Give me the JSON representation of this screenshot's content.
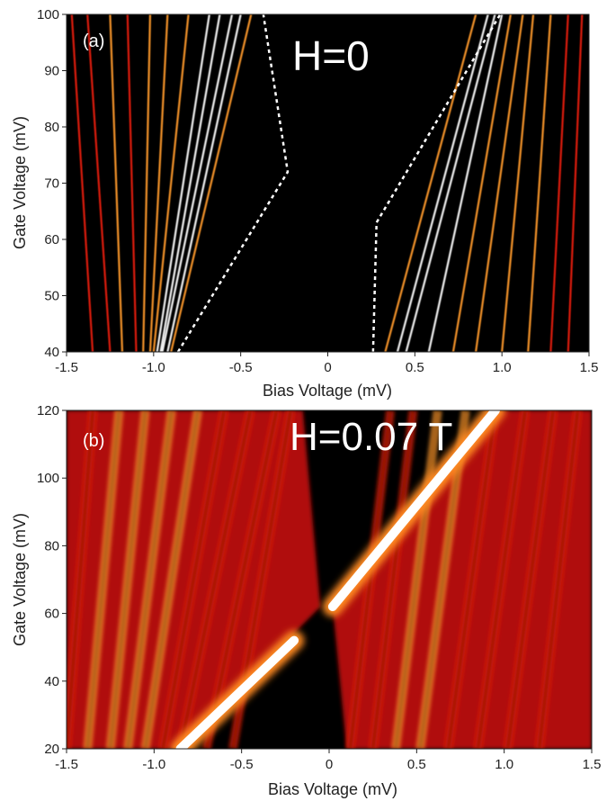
{
  "chart_data": [
    {
      "type": "heatmap",
      "panel_label": "(a)",
      "annotation": "H=0",
      "xlabel": "Bias Voltage (mV)",
      "ylabel": "Gate Voltage (mV)",
      "xlim": [
        -1.5,
        1.5
      ],
      "ylim": [
        40,
        100
      ],
      "xticks": [
        -1.5,
        -1.0,
        -0.5,
        0,
        0.5,
        1.0,
        1.5
      ],
      "xtick_labels": [
        "-1.5",
        "-1.0",
        "-0.5",
        "0",
        "0.5",
        "1.0",
        "1.5"
      ],
      "yticks": [
        40,
        50,
        60,
        70,
        80,
        90,
        100
      ],
      "ytick_labels": [
        "40",
        "50",
        "60",
        "70",
        "80",
        "90",
        "100"
      ],
      "colormap": [
        "#000000",
        "#7a0000",
        "#e8200c",
        "#ff9a2e",
        "#ffffff"
      ],
      "gap_boundary_left": [
        [
          -0.86,
          40
        ],
        [
          -0.23,
          72
        ],
        [
          -0.37,
          100
        ]
      ],
      "gap_boundary_right": [
        [
          0.26,
          40
        ],
        [
          0.28,
          63
        ],
        [
          0.99,
          100
        ]
      ],
      "boundary_color": "#ffffff",
      "stripes_left": [
        {
          "bias_at_top": -1.47,
          "bias_at_bottom": -1.35,
          "intensity": 0.55
        },
        {
          "bias_at_top": -1.38,
          "bias_at_bottom": -1.25,
          "intensity": 0.6
        },
        {
          "bias_at_top": -1.25,
          "bias_at_bottom": -1.18,
          "intensity": 0.65
        },
        {
          "bias_at_top": -1.15,
          "bias_at_bottom": -1.1,
          "intensity": 0.6
        },
        {
          "bias_at_top": -1.02,
          "bias_at_bottom": -1.06,
          "intensity": 0.7
        },
        {
          "bias_at_top": -0.92,
          "bias_at_bottom": -1.02,
          "intensity": 0.75
        },
        {
          "bias_at_top": -0.8,
          "bias_at_bottom": -1.0,
          "intensity": 0.85
        },
        {
          "bias_at_top": -0.68,
          "bias_at_bottom": -0.98,
          "intensity": 0.9
        },
        {
          "bias_at_top": -0.62,
          "bias_at_bottom": -0.96,
          "intensity": 1.0
        },
        {
          "bias_at_top": -0.55,
          "bias_at_bottom": -0.95,
          "intensity": 0.95
        },
        {
          "bias_at_top": -0.5,
          "bias_at_bottom": -0.92,
          "intensity": 0.9
        },
        {
          "bias_at_top": -0.44,
          "bias_at_bottom": -0.9,
          "intensity": 0.8
        }
      ],
      "stripes_right": [
        {
          "bias_at_top": 1.46,
          "bias_at_bottom": 1.38,
          "intensity": 0.55
        },
        {
          "bias_at_top": 1.38,
          "bias_at_bottom": 1.28,
          "intensity": 0.6
        },
        {
          "bias_at_top": 1.28,
          "bias_at_bottom": 1.15,
          "intensity": 0.65
        },
        {
          "bias_at_top": 1.18,
          "bias_at_bottom": 1.0,
          "intensity": 0.7
        },
        {
          "bias_at_top": 1.12,
          "bias_at_bottom": 0.85,
          "intensity": 0.8
        },
        {
          "bias_at_top": 1.05,
          "bias_at_bottom": 0.72,
          "intensity": 0.85
        },
        {
          "bias_at_top": 1.0,
          "bias_at_bottom": 0.58,
          "intensity": 0.9
        },
        {
          "bias_at_top": 0.96,
          "bias_at_bottom": 0.45,
          "intensity": 1.0
        },
        {
          "bias_at_top": 0.92,
          "bias_at_bottom": 0.4,
          "intensity": 0.9
        },
        {
          "bias_at_top": 0.85,
          "bias_at_bottom": 0.33,
          "intensity": 0.75
        }
      ]
    },
    {
      "type": "heatmap",
      "panel_label": "(b)",
      "annotation": "H=0.07 T",
      "xlabel": "Bias Voltage (mV)",
      "ylabel": "Gate Voltage (mV)",
      "xlim": [
        -1.5,
        1.5
      ],
      "ylim": [
        20,
        120
      ],
      "xticks": [
        -1.5,
        -1.0,
        -0.5,
        0,
        0.5,
        1.0,
        1.5
      ],
      "xtick_labels": [
        "-1.5",
        "-1.0",
        "-0.5",
        "0",
        "0.5",
        "1.0",
        "1.5"
      ],
      "yticks": [
        20,
        40,
        60,
        80,
        100,
        120
      ],
      "ytick_labels": [
        "20",
        "40",
        "60",
        "80",
        "100",
        "120"
      ],
      "colormap": [
        "#000000",
        "#7a0000",
        "#e8200c",
        "#ff9a2e",
        "#ffffff"
      ],
      "bright_line_left": [
        [
          -0.85,
          20
        ],
        [
          -0.2,
          52
        ]
      ],
      "bright_line_right": [
        [
          0.02,
          62
        ],
        [
          0.95,
          120
        ]
      ],
      "stripes_left": [
        {
          "bias_at_top": -1.35,
          "bias_at_bottom": -1.5,
          "intensity": 0.8
        },
        {
          "bias_at_top": -1.2,
          "bias_at_bottom": -1.38,
          "intensity": 0.85
        },
        {
          "bias_at_top": -1.05,
          "bias_at_bottom": -1.25,
          "intensity": 0.9
        },
        {
          "bias_at_top": -0.9,
          "bias_at_bottom": -1.15,
          "intensity": 0.9
        },
        {
          "bias_at_top": -0.75,
          "bias_at_bottom": -1.05,
          "intensity": 0.85
        },
        {
          "bias_at_top": -0.6,
          "bias_at_bottom": -0.95,
          "intensity": 0.8
        },
        {
          "bias_at_top": -0.45,
          "bias_at_bottom": -0.85,
          "intensity": 0.75
        },
        {
          "bias_at_top": -0.3,
          "bias_at_bottom": -0.7,
          "intensity": 0.7
        },
        {
          "bias_at_top": -0.22,
          "bias_at_bottom": -0.55,
          "intensity": 0.6
        }
      ],
      "stripes_right": [
        {
          "bias_at_top": 0.35,
          "bias_at_bottom": 0.12,
          "intensity": 0.75
        },
        {
          "bias_at_top": 0.48,
          "bias_at_bottom": 0.25,
          "intensity": 0.8
        },
        {
          "bias_at_top": 0.62,
          "bias_at_bottom": 0.38,
          "intensity": 0.85
        },
        {
          "bias_at_top": 0.78,
          "bias_at_bottom": 0.52,
          "intensity": 0.85
        },
        {
          "bias_at_top": 0.95,
          "bias_at_bottom": 0.68,
          "intensity": 0.8
        },
        {
          "bias_at_top": 1.12,
          "bias_at_bottom": 0.85,
          "intensity": 0.8
        },
        {
          "bias_at_top": 1.28,
          "bias_at_bottom": 1.02,
          "intensity": 0.75
        },
        {
          "bias_at_top": 1.42,
          "bias_at_bottom": 1.2,
          "intensity": 0.7
        }
      ]
    }
  ]
}
